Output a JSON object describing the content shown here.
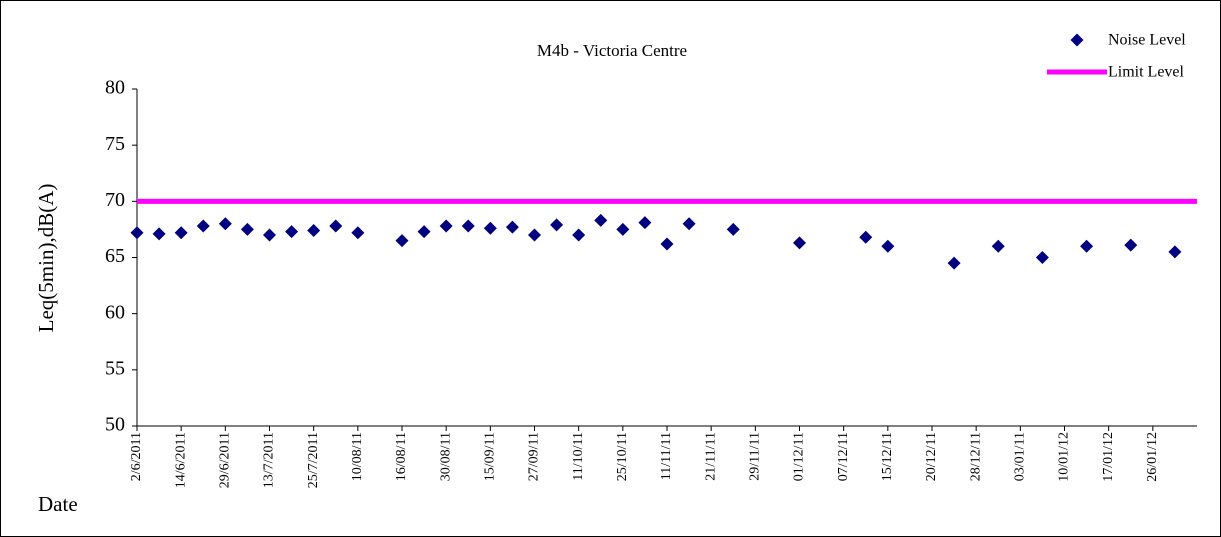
{
  "chart_data": {
    "type": "scatter",
    "title": "M4b - Victoria Centre",
    "y_label": "Leq(5min),dB(A)",
    "x_label": "Date",
    "categories": [
      "2/6/2011",
      null,
      "14/6/2011",
      null,
      "29/6/2011",
      null,
      "13/7/2011",
      null,
      "25/7/2011",
      null,
      "10/08/11",
      null,
      "16/08/11",
      null,
      "30/08/11",
      null,
      "15/09/11",
      null,
      "27/09/11",
      null,
      "11/10/11",
      null,
      "25/10/11",
      null,
      "11/11/11",
      null,
      "21/11/11",
      null,
      "29/11/11",
      null,
      "01/12/11",
      null,
      "07/12/11",
      null,
      "15/12/11",
      null,
      "20/12/11",
      null,
      "28/12/11",
      null,
      "03/01/11",
      null,
      "10/01/12",
      null,
      "17/01/12",
      null,
      "26/01/12",
      null,
      null
    ],
    "series": [
      {
        "name": "Noise Level",
        "color": "#000080",
        "kind": "marker",
        "values": [
          67.2,
          67.1,
          67.2,
          67.8,
          68.0,
          67.5,
          67.0,
          67.3,
          67.4,
          67.8,
          67.2,
          null,
          66.5,
          67.3,
          67.8,
          67.8,
          67.6,
          67.7,
          67.0,
          67.9,
          67.0,
          68.3,
          67.5,
          68.1,
          66.2,
          68.0,
          null,
          67.5,
          null,
          null,
          66.3,
          null,
          null,
          66.8,
          66.0,
          null,
          null,
          64.5,
          null,
          66.0,
          null,
          65.0,
          null,
          66.0,
          null,
          66.1,
          null,
          65.5,
          null
        ]
      },
      {
        "name": "Limit Level",
        "color": "#ff00ff",
        "kind": "line",
        "values": [
          70,
          70,
          70,
          70,
          70,
          70,
          70,
          70,
          70,
          70,
          70,
          70,
          70,
          70,
          70,
          70,
          70,
          70,
          70,
          70,
          70,
          70,
          70,
          70,
          70,
          70,
          70,
          70,
          70,
          70,
          70,
          70,
          70,
          70,
          70,
          70,
          70,
          70,
          70,
          70,
          70,
          70,
          70,
          70,
          70,
          70,
          70,
          70,
          70
        ]
      }
    ],
    "ylim": [
      50,
      80
    ],
    "yticks": [
      50,
      55,
      60,
      65,
      70,
      75,
      80
    ],
    "grid": false,
    "legend": "top-right"
  }
}
